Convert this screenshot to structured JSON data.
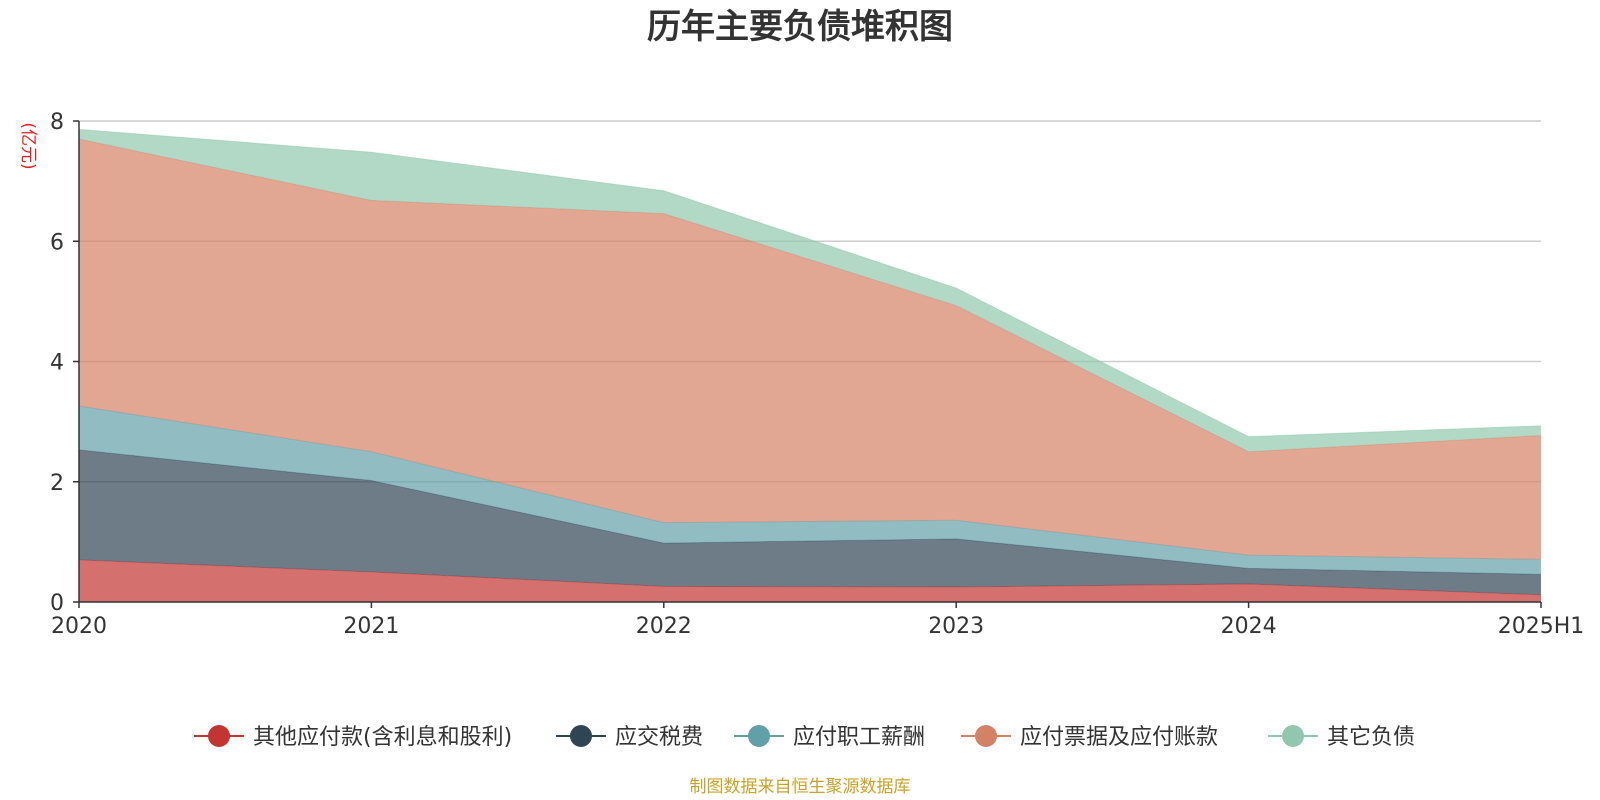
{
  "chart_data": {
    "type": "area",
    "stacked": true,
    "title": "历年主要负债堆积图",
    "y_unit_label": "(亿元)",
    "categories": [
      "2020",
      "2021",
      "2022",
      "2023",
      "2024",
      "2025H1"
    ],
    "ylim": [
      0,
      8
    ],
    "y_ticks": [
      "0",
      "2",
      "4",
      "6",
      "8"
    ],
    "grid": true,
    "legend_position": "bottom",
    "series": [
      {
        "name": "其他应付款(含利息和股利)",
        "color": "#c23531",
        "values": [
          0.7,
          0.5,
          0.26,
          0.25,
          0.3,
          0.12
        ]
      },
      {
        "name": "应交税费",
        "color": "#2f4554",
        "values": [
          1.83,
          1.52,
          0.72,
          0.8,
          0.26,
          0.34
        ]
      },
      {
        "name": "应付职工薪酬",
        "color": "#61a0a8",
        "values": [
          0.73,
          0.48,
          0.34,
          0.31,
          0.22,
          0.25
        ]
      },
      {
        "name": "应付票据及应付账款",
        "color": "#d48265",
        "values": [
          4.44,
          4.18,
          5.14,
          3.57,
          1.72,
          2.06
        ]
      },
      {
        "name": "其它负债",
        "color": "#91c7ae",
        "values": [
          0.16,
          0.8,
          0.38,
          0.29,
          0.25,
          0.16
        ]
      }
    ]
  },
  "source_note": "制图数据来自恒生聚源数据库"
}
